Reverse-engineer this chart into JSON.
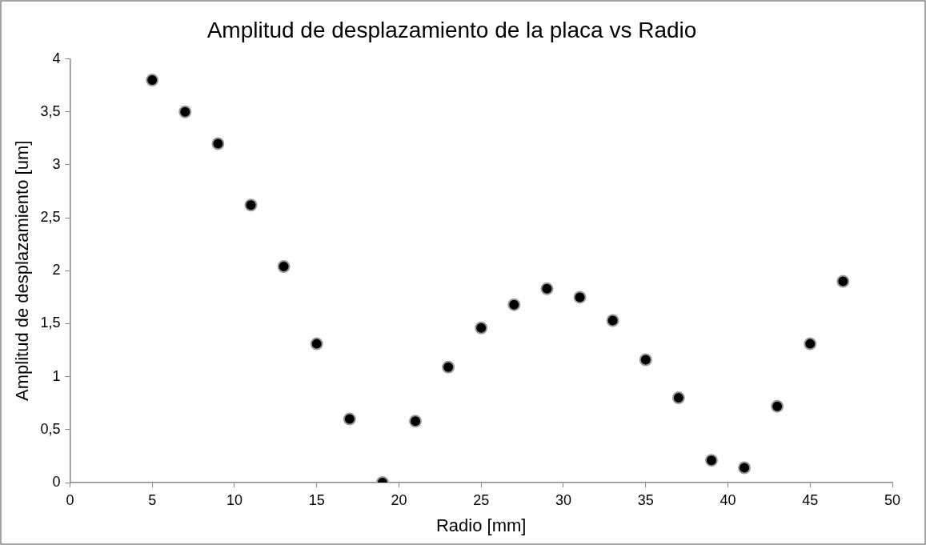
{
  "chart_data": {
    "type": "scatter",
    "title": "Amplitud de desplazamiento de la placa vs Radio",
    "xlabel": "Radio [mm]",
    "ylabel": "Amplitud de desplazamiento [um]",
    "x": [
      5,
      7,
      9,
      11,
      13,
      15,
      17,
      19,
      21,
      23,
      25,
      27,
      29,
      31,
      33,
      35,
      37,
      39,
      41,
      43,
      45,
      47
    ],
    "series": [
      {
        "color": "#000000",
        "values": [
          3.8,
          3.5,
          3.2,
          2.62,
          2.04,
          1.31,
          0.6,
          0,
          0.58,
          1.09,
          1.46,
          1.68,
          1.83,
          1.75,
          1.53,
          1.16,
          0.8,
          0.21,
          0.14,
          0.72,
          1.31,
          1.9
        ]
      }
    ],
    "xlim": [
      0,
      50
    ],
    "xticks": [
      0,
      5,
      10,
      15,
      20,
      25,
      30,
      35,
      40,
      45,
      50
    ],
    "ylim": [
      0,
      4
    ],
    "yticks": [
      0,
      {
        "value": 0.5,
        "label": "0,5"
      },
      1,
      {
        "value": 1.5,
        "label": "1,5"
      },
      2,
      {
        "value": 2.5,
        "label": "2,5"
      },
      3,
      {
        "value": 3.5,
        "label": "3,5"
      },
      4
    ],
    "legend": false,
    "marker": "circle"
  }
}
